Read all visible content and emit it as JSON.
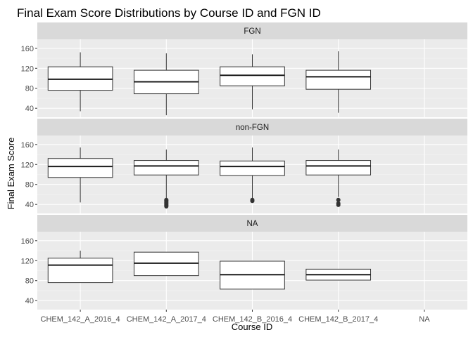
{
  "chart_data": {
    "type": "boxplot",
    "title": "Final Exam Score Distributions by Course ID and FGN ID",
    "xlabel": "Course ID",
    "ylabel": "Final Exam Score",
    "categories": [
      "CHEM_142_A_2016_4",
      "CHEM_142_A_2017_4",
      "CHEM_142_B_2016_4",
      "CHEM_142_B_2017_4",
      "NA"
    ],
    "y_ticks": [
      40,
      80,
      120,
      160
    ],
    "ylim": [
      22,
      178
    ],
    "grid": true,
    "panels": [
      {
        "label": "FGN",
        "boxes": [
          {
            "category": "CHEM_142_A_2016_4",
            "min": 34,
            "q1": 76,
            "median": 98,
            "q3": 123,
            "max": 152,
            "outliers": []
          },
          {
            "category": "CHEM_142_A_2017_4",
            "min": 26,
            "q1": 69,
            "median": 93,
            "q3": 116,
            "max": 150,
            "outliers": []
          },
          {
            "category": "CHEM_142_B_2016_4",
            "min": 38,
            "q1": 85,
            "median": 106,
            "q3": 123,
            "max": 148,
            "outliers": []
          },
          {
            "category": "CHEM_142_B_2017_4",
            "min": 31,
            "q1": 78,
            "median": 103,
            "q3": 116,
            "max": 154,
            "outliers": []
          }
        ]
      },
      {
        "label": "non-FGN",
        "boxes": [
          {
            "category": "CHEM_142_A_2016_4",
            "min": 44,
            "q1": 94,
            "median": 116,
            "q3": 132,
            "max": 154,
            "outliers": []
          },
          {
            "category": "CHEM_142_A_2017_4",
            "min": 52,
            "q1": 99,
            "median": 117,
            "q3": 128,
            "max": 150,
            "outliers": [
              36,
              38,
              40,
              42,
              44,
              46,
              48,
              49
            ]
          },
          {
            "category": "CHEM_142_B_2016_4",
            "min": 52,
            "q1": 98,
            "median": 116,
            "q3": 127,
            "max": 154,
            "outliers": [
              47,
              49
            ]
          },
          {
            "category": "CHEM_142_B_2017_4",
            "min": 55,
            "q1": 99,
            "median": 117,
            "q3": 128,
            "max": 150,
            "outliers": [
              39,
              42,
              49
            ]
          }
        ]
      },
      {
        "label": "NA",
        "boxes": [
          {
            "category": "CHEM_142_A_2016_4",
            "min": 76,
            "q1": 76,
            "median": 111,
            "q3": 125,
            "max": 140,
            "outliers": []
          },
          {
            "category": "CHEM_142_A_2017_4",
            "min": 90,
            "q1": 90,
            "median": 115,
            "q3": 137,
            "max": 137,
            "outliers": []
          },
          {
            "category": "CHEM_142_B_2016_4",
            "min": 63,
            "q1": 63,
            "median": 92,
            "q3": 119,
            "max": 119,
            "outliers": []
          },
          {
            "category": "CHEM_142_B_2017_4",
            "min": 81,
            "q1": 81,
            "median": 92,
            "q3": 103,
            "max": 103,
            "outliers": []
          }
        ]
      }
    ],
    "colors": {
      "panel_bg": "#ebebeb",
      "strip_bg": "#d9d9d9",
      "grid_major": "#ffffff",
      "box_fill": "#ffffff",
      "box_line": "#333333",
      "tick_text": "#4d4d4d"
    }
  }
}
